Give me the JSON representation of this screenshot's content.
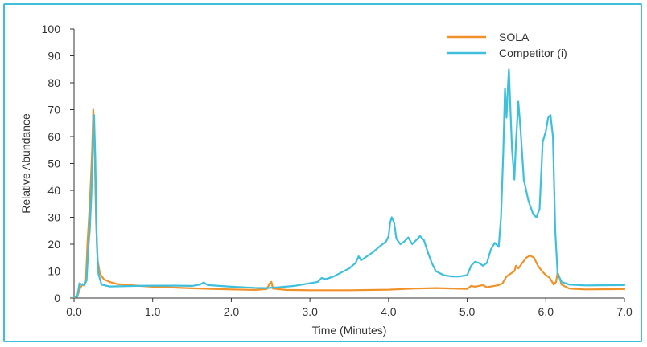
{
  "chart_data": {
    "type": "line",
    "xlabel": "Time (Minutes)",
    "ylabel": "Relative Abundance",
    "xlim": [
      0,
      7
    ],
    "ylim": [
      0,
      100
    ],
    "x_ticks": [
      "0.0",
      "1.0",
      "2.0",
      "3.0",
      "4.0",
      "5.0",
      "6.0",
      "7.0"
    ],
    "y_ticks": [
      "0",
      "10",
      "20",
      "30",
      "40",
      "50",
      "60",
      "70",
      "80",
      "90",
      "100"
    ],
    "grid": false,
    "legend_position": "top-right",
    "series": [
      {
        "name": "SOLA",
        "color": "#f0912a",
        "points": [
          [
            0.0,
            0.3
          ],
          [
            0.04,
            0.5
          ],
          [
            0.08,
            3.8
          ],
          [
            0.11,
            5.2
          ],
          [
            0.13,
            4.6
          ],
          [
            0.15,
            6.3
          ],
          [
            0.17,
            20.0
          ],
          [
            0.19,
            30.0
          ],
          [
            0.21,
            41.0
          ],
          [
            0.23,
            55.0
          ],
          [
            0.245,
            70.0
          ],
          [
            0.26,
            58.0
          ],
          [
            0.28,
            28.0
          ],
          [
            0.3,
            14.0
          ],
          [
            0.33,
            9.0
          ],
          [
            0.38,
            7.0
          ],
          [
            0.45,
            6.0
          ],
          [
            0.55,
            5.2
          ],
          [
            0.8,
            4.6
          ],
          [
            1.0,
            4.2
          ],
          [
            1.5,
            3.6
          ],
          [
            2.0,
            3.2
          ],
          [
            2.3,
            3.0
          ],
          [
            2.45,
            3.3
          ],
          [
            2.49,
            5.5
          ],
          [
            2.51,
            6.0
          ],
          [
            2.53,
            3.5
          ],
          [
            2.7,
            3.0
          ],
          [
            3.0,
            2.9
          ],
          [
            3.5,
            2.9
          ],
          [
            4.0,
            3.1
          ],
          [
            4.3,
            3.5
          ],
          [
            4.6,
            3.7
          ],
          [
            5.0,
            3.4
          ],
          [
            5.05,
            4.5
          ],
          [
            5.1,
            4.2
          ],
          [
            5.2,
            4.8
          ],
          [
            5.25,
            4.0
          ],
          [
            5.4,
            4.8
          ],
          [
            5.45,
            5.5
          ],
          [
            5.5,
            8.0
          ],
          [
            5.6,
            10.0
          ],
          [
            5.62,
            12.0
          ],
          [
            5.65,
            11.0
          ],
          [
            5.7,
            13.0
          ],
          [
            5.75,
            15.0
          ],
          [
            5.8,
            15.8
          ],
          [
            5.85,
            15.0
          ],
          [
            5.9,
            12.0
          ],
          [
            5.95,
            10.0
          ],
          [
            6.0,
            8.5
          ],
          [
            6.05,
            7.5
          ],
          [
            6.1,
            5.0
          ],
          [
            6.13,
            6.0
          ],
          [
            6.15,
            9.5
          ],
          [
            6.17,
            8.0
          ],
          [
            6.2,
            5.0
          ],
          [
            6.3,
            3.5
          ],
          [
            6.5,
            3.2
          ],
          [
            7.0,
            3.3
          ]
        ]
      },
      {
        "name": "Competitor (i)",
        "color": "#3ec0dc",
        "points": [
          [
            0.0,
            0.5
          ],
          [
            0.04,
            0.5
          ],
          [
            0.07,
            5.5
          ],
          [
            0.1,
            5.0
          ],
          [
            0.13,
            4.8
          ],
          [
            0.16,
            6.5
          ],
          [
            0.18,
            18.0
          ],
          [
            0.2,
            25.0
          ],
          [
            0.22,
            38.0
          ],
          [
            0.24,
            58.0
          ],
          [
            0.255,
            68.0
          ],
          [
            0.27,
            52.0
          ],
          [
            0.29,
            20.0
          ],
          [
            0.31,
            9.0
          ],
          [
            0.35,
            5.0
          ],
          [
            0.45,
            4.3
          ],
          [
            0.8,
            4.5
          ],
          [
            1.0,
            4.6
          ],
          [
            1.3,
            4.6
          ],
          [
            1.5,
            4.5
          ],
          [
            1.6,
            5.0
          ],
          [
            1.65,
            5.8
          ],
          [
            1.7,
            4.8
          ],
          [
            2.0,
            4.2
          ],
          [
            2.3,
            3.8
          ],
          [
            2.45,
            3.7
          ],
          [
            2.6,
            4.0
          ],
          [
            2.8,
            4.5
          ],
          [
            3.0,
            5.5
          ],
          [
            3.1,
            6.0
          ],
          [
            3.15,
            7.5
          ],
          [
            3.2,
            7.0
          ],
          [
            3.3,
            8.0
          ],
          [
            3.4,
            9.5
          ],
          [
            3.5,
            11.0
          ],
          [
            3.58,
            13.0
          ],
          [
            3.62,
            15.5
          ],
          [
            3.65,
            14.0
          ],
          [
            3.7,
            15.0
          ],
          [
            3.8,
            17.0
          ],
          [
            3.9,
            19.5
          ],
          [
            3.97,
            21.0
          ],
          [
            4.0,
            23.0
          ],
          [
            4.02,
            28.0
          ],
          [
            4.04,
            30.0
          ],
          [
            4.07,
            28.0
          ],
          [
            4.1,
            22.0
          ],
          [
            4.15,
            20.0
          ],
          [
            4.2,
            21.0
          ],
          [
            4.25,
            22.5
          ],
          [
            4.3,
            20.0
          ],
          [
            4.35,
            21.5
          ],
          [
            4.4,
            23.0
          ],
          [
            4.45,
            21.5
          ],
          [
            4.5,
            17.0
          ],
          [
            4.55,
            13.0
          ],
          [
            4.6,
            10.0
          ],
          [
            4.7,
            8.5
          ],
          [
            4.8,
            8.0
          ],
          [
            4.9,
            8.0
          ],
          [
            5.0,
            8.5
          ],
          [
            5.05,
            12.0
          ],
          [
            5.1,
            13.5
          ],
          [
            5.15,
            13.0
          ],
          [
            5.2,
            12.0
          ],
          [
            5.25,
            13.0
          ],
          [
            5.3,
            18.0
          ],
          [
            5.35,
            20.5
          ],
          [
            5.4,
            19.0
          ],
          [
            5.43,
            30.0
          ],
          [
            5.46,
            55.0
          ],
          [
            5.48,
            78.0
          ],
          [
            5.5,
            67.0
          ],
          [
            5.52,
            80.0
          ],
          [
            5.53,
            85.0
          ],
          [
            5.55,
            70.0
          ],
          [
            5.57,
            55.0
          ],
          [
            5.6,
            44.0
          ],
          [
            5.62,
            58.0
          ],
          [
            5.65,
            73.0
          ],
          [
            5.68,
            62.0
          ],
          [
            5.72,
            44.0
          ],
          [
            5.78,
            36.0
          ],
          [
            5.84,
            31.0
          ],
          [
            5.88,
            30.0
          ],
          [
            5.92,
            33.0
          ],
          [
            5.96,
            58.0
          ],
          [
            6.0,
            62.0
          ],
          [
            6.03,
            67.0
          ],
          [
            6.06,
            68.0
          ],
          [
            6.09,
            60.0
          ],
          [
            6.12,
            25.0
          ],
          [
            6.15,
            9.0
          ],
          [
            6.2,
            6.0
          ],
          [
            6.3,
            5.0
          ],
          [
            6.5,
            4.7
          ],
          [
            7.0,
            4.8
          ]
        ]
      }
    ]
  }
}
